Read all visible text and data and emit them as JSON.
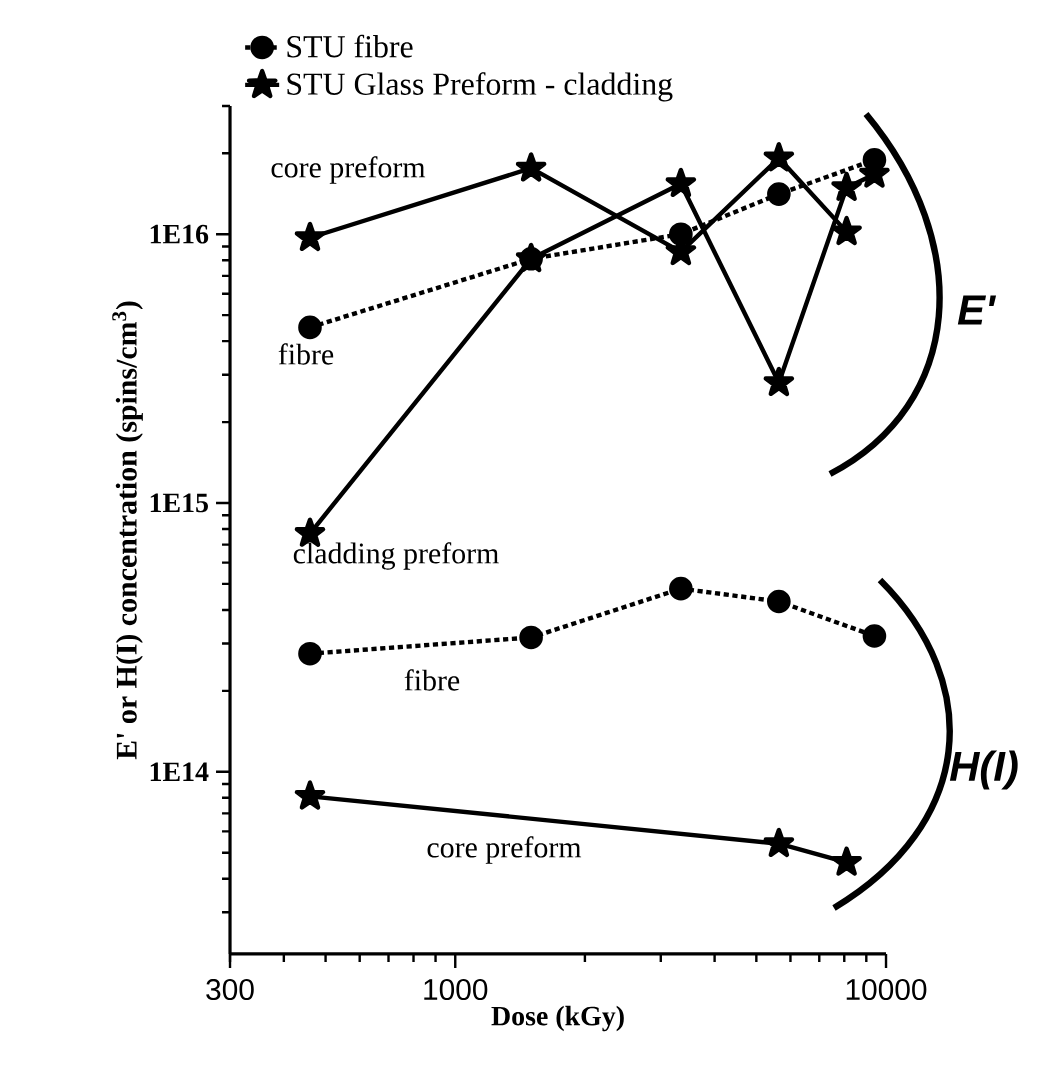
{
  "chart_data": {
    "type": "line",
    "xlabel": "Dose (kGy)",
    "ylabel": "E' or H(I) concentration (spins/cm$^{3}$)",
    "log": "xy",
    "xlim": [
      300,
      10000
    ],
    "xticks": [
      300,
      1000,
      10000
    ],
    "ylim": [
      21000000000000.0,
      3e+16
    ],
    "yticks": [
      {
        "value": 100000000000000.0,
        "label": "1E14"
      },
      {
        "value": 1000000000000000.0,
        "label": "1E15"
      },
      {
        "value": 1e+16,
        "label": "1E16"
      }
    ],
    "legend": "top",
    "series": [
      {
        "name": "STU fibre",
        "color": "#000000",
        "marker": "circle",
        "line_style": "dotted",
        "x": [
          460,
          1500,
          3340,
          5640,
          9400
        ],
        "values": [
          4500000000000000.0,
          8100000000000000.0,
          1e+16,
          1.41e+16,
          1.89e+16
        ]
      },
      {
        "name": "STU Glass Preform - cladding",
        "color": "#000000",
        "marker": "star",
        "line_style": "solid",
        "x": [
          460,
          1500,
          3340,
          5640,
          8100,
          9400
        ],
        "values": [
          770000000000000.0,
          8100000000000000.0,
          1.54e+16,
          2800000000000000.0,
          1.49e+16,
          1.67e+16
        ]
      },
      {
        "color": "#000000",
        "marker": "star",
        "line_style": "solid",
        "x": [
          460,
          1500,
          3340,
          5640,
          8100
        ],
        "values": [
          9700000000000000.0,
          1.76e+16,
          8600000000000000.0,
          1.92e+16,
          1.02e+16
        ]
      },
      {
        "color": "#000000",
        "marker": "circle",
        "line_style": "dotted",
        "x": [
          460,
          1500,
          3340,
          5640,
          9400
        ],
        "values": [
          275000000000000.0,
          316000000000000.0,
          480000000000000.0,
          430000000000000.0,
          320000000000000.0
        ]
      },
      {
        "color": "#000000",
        "marker": "star",
        "line_style": "solid",
        "x": [
          460,
          5640,
          8100
        ],
        "values": [
          81000000000000.0,
          54000000000000.0,
          46000000000000.0
        ]
      }
    ],
    "annotations": [
      "E'",
      "H(I)",
      "core preform",
      "fibre",
      "cladding preform",
      "fibre",
      "core preform"
    ]
  }
}
